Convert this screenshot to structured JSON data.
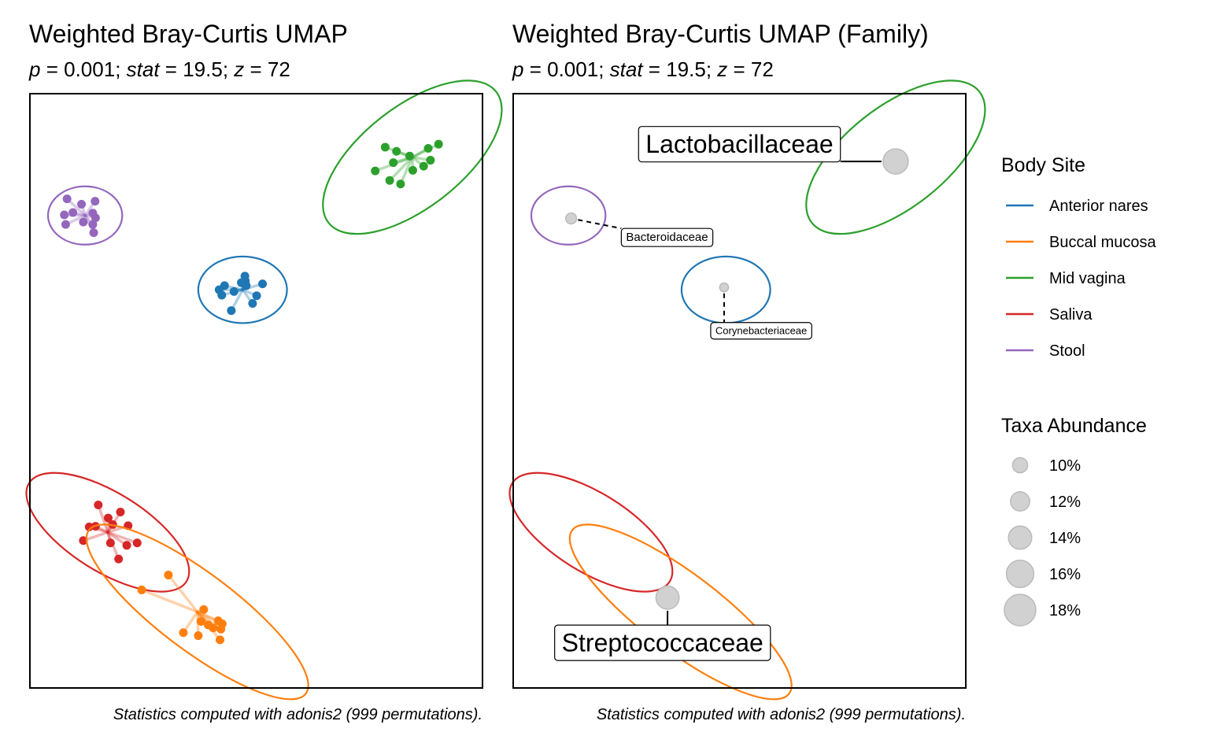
{
  "colors": {
    "Anterior nares": "#1f77b4",
    "Buccal mucosa": "#ff7f0e",
    "Mid vagina": "#2ca02c",
    "Saliva": "#d62728",
    "Stool": "#9467bd",
    "abundance_fill": "#cccccc"
  },
  "legend": {
    "body_site_title": "Body Site",
    "body_sites": [
      "Anterior nares",
      "Buccal mucosa",
      "Mid vagina",
      "Saliva",
      "Stool"
    ],
    "abundance_title": "Taxa Abundance",
    "abundance_values": [
      10,
      12,
      14,
      16,
      18
    ],
    "abundance_labels": [
      "10%",
      "12%",
      "14%",
      "16%",
      "18%"
    ]
  },
  "chart_data": [
    {
      "type": "scatter",
      "title": "Weighted Bray-Curtis UMAP",
      "subtitle": {
        "p": "0.001",
        "stat": "19.5",
        "z": "72"
      },
      "caption": "Statistics computed with adonis2 (999 permutations).",
      "xlim": [
        0,
        100
      ],
      "ylim": [
        0,
        100
      ],
      "groups": [
        {
          "name": "Mid vagina",
          "centroid": [
            84.5,
            89.3
          ],
          "ellipse": {
            "rx": 23.5,
            "ry": 8.5,
            "angle": -38
          },
          "points": [
            [
              78.5,
              91.0
            ],
            [
              81.0,
              90.3
            ],
            [
              83.9,
              89.5
            ],
            [
              88.0,
              90.8
            ],
            [
              90.3,
              91.5
            ],
            [
              88.5,
              88.8
            ],
            [
              87.0,
              87.8
            ],
            [
              84.6,
              87.1
            ],
            [
              80.3,
              88.4
            ],
            [
              81.9,
              84.8
            ],
            [
              79.5,
              85.4
            ],
            [
              76.3,
              87.0
            ]
          ]
        },
        {
          "name": "Stool",
          "centroid": [
            12.2,
            79.5
          ],
          "ellipse": {
            "rx": 8.2,
            "ry": 4.9,
            "angle": 0
          },
          "points": [
            [
              8.2,
              82.3
            ],
            [
              11.4,
              81.4
            ],
            [
              14.4,
              81.9
            ],
            [
              13.9,
              79.9
            ],
            [
              14.5,
              79.1
            ],
            [
              9.5,
              80.0
            ],
            [
              7.6,
              79.6
            ],
            [
              11.8,
              78.4
            ],
            [
              13.9,
              78.0
            ],
            [
              7.9,
              78.0
            ],
            [
              14.1,
              76.6
            ]
          ]
        },
        {
          "name": "Anterior nares",
          "centroid": [
            47.0,
            67.0
          ],
          "ellipse": {
            "rx": 9.8,
            "ry": 5.6,
            "angle": 0
          },
          "points": [
            [
              47.5,
              69.3
            ],
            [
              47.6,
              68.5
            ],
            [
              46.7,
              68.2
            ],
            [
              51.4,
              68.0
            ],
            [
              43.0,
              67.7
            ],
            [
              47.8,
              67.7
            ],
            [
              41.8,
              67.0
            ],
            [
              42.4,
              66.1
            ],
            [
              45.1,
              66.7
            ],
            [
              50.1,
              66.0
            ],
            [
              49.2,
              64.7
            ],
            [
              44.5,
              63.5
            ]
          ]
        },
        {
          "name": "Saliva",
          "centroid": [
            17.2,
            26.2
          ],
          "ellipse": {
            "rx": 20.5,
            "ry": 6.6,
            "angle": 32
          },
          "points": [
            [
              15.1,
              30.8
            ],
            [
              20.0,
              29.6
            ],
            [
              17.3,
              28.6
            ],
            [
              13.1,
              27.1
            ],
            [
              14.5,
              27.2
            ],
            [
              18.3,
              27.5
            ],
            [
              21.7,
              27.3
            ],
            [
              11.8,
              24.8
            ],
            [
              17.8,
              24.4
            ],
            [
              21.4,
              24.0
            ],
            [
              23.7,
              24.4
            ],
            [
              19.6,
              21.7
            ]
          ]
        },
        {
          "name": "Buccal mucosa",
          "centroid": [
            37.0,
            12.8
          ],
          "ellipse": {
            "rx": 30.0,
            "ry": 6.5,
            "angle": 37
          },
          "points": [
            [
              24.7,
              16.5
            ],
            [
              30.6,
              19.0
            ],
            [
              38.4,
              13.2
            ],
            [
              37.8,
              11.2
            ],
            [
              39.4,
              10.6
            ],
            [
              42.5,
              10.8
            ],
            [
              41.6,
              11.3
            ],
            [
              40.5,
              10.1
            ],
            [
              42.2,
              9.9
            ],
            [
              33.9,
              9.3
            ],
            [
              37.2,
              8.8
            ],
            [
              42.0,
              8.1
            ]
          ]
        }
      ]
    },
    {
      "type": "scatter",
      "title": "Weighted Bray-Curtis UMAP (Family)",
      "subtitle": {
        "p": "0.001",
        "stat": "19.5",
        "z": "72"
      },
      "caption": "Statistics computed with adonis2 (999 permutations).",
      "xlim": [
        0,
        100
      ],
      "ylim": [
        0,
        100
      ],
      "ellipses": [
        {
          "name": "Mid vagina",
          "centroid": [
            84.5,
            89.3
          ],
          "rx": 23.5,
          "ry": 8.5,
          "angle": -38
        },
        {
          "name": "Stool",
          "centroid": [
            12.2,
            79.5
          ],
          "rx": 8.2,
          "ry": 4.9,
          "angle": 0
        },
        {
          "name": "Anterior nares",
          "centroid": [
            47.0,
            67.0
          ],
          "rx": 9.8,
          "ry": 5.6,
          "angle": 0
        },
        {
          "name": "Saliva",
          "centroid": [
            17.2,
            26.2
          ],
          "rx": 20.5,
          "ry": 6.6,
          "angle": 32
        },
        {
          "name": "Buccal mucosa",
          "centroid": [
            37.0,
            12.8
          ],
          "rx": 30.0,
          "ry": 6.5,
          "angle": 37
        }
      ],
      "taxa": [
        {
          "label": "Lactobacillaceae",
          "x": 84.5,
          "y": 88.6,
          "abundance": 18,
          "label_x": 50.0,
          "label_y": 91.5,
          "font": 32
        },
        {
          "label": "Bacteroidaceae",
          "x": 12.8,
          "y": 79.0,
          "abundance": 11,
          "label_x": 34.0,
          "label_y": 75.8,
          "font": 15
        },
        {
          "label": "Corynebacteriaceae",
          "x": 46.6,
          "y": 67.4,
          "abundance": 10,
          "label_x": 54.8,
          "label_y": 60.1,
          "font": 13
        },
        {
          "label": "Streptococcaceae",
          "x": 34.1,
          "y": 15.2,
          "abundance": 17,
          "label_x": 33.0,
          "label_y": 7.6,
          "font": 32
        }
      ]
    }
  ]
}
